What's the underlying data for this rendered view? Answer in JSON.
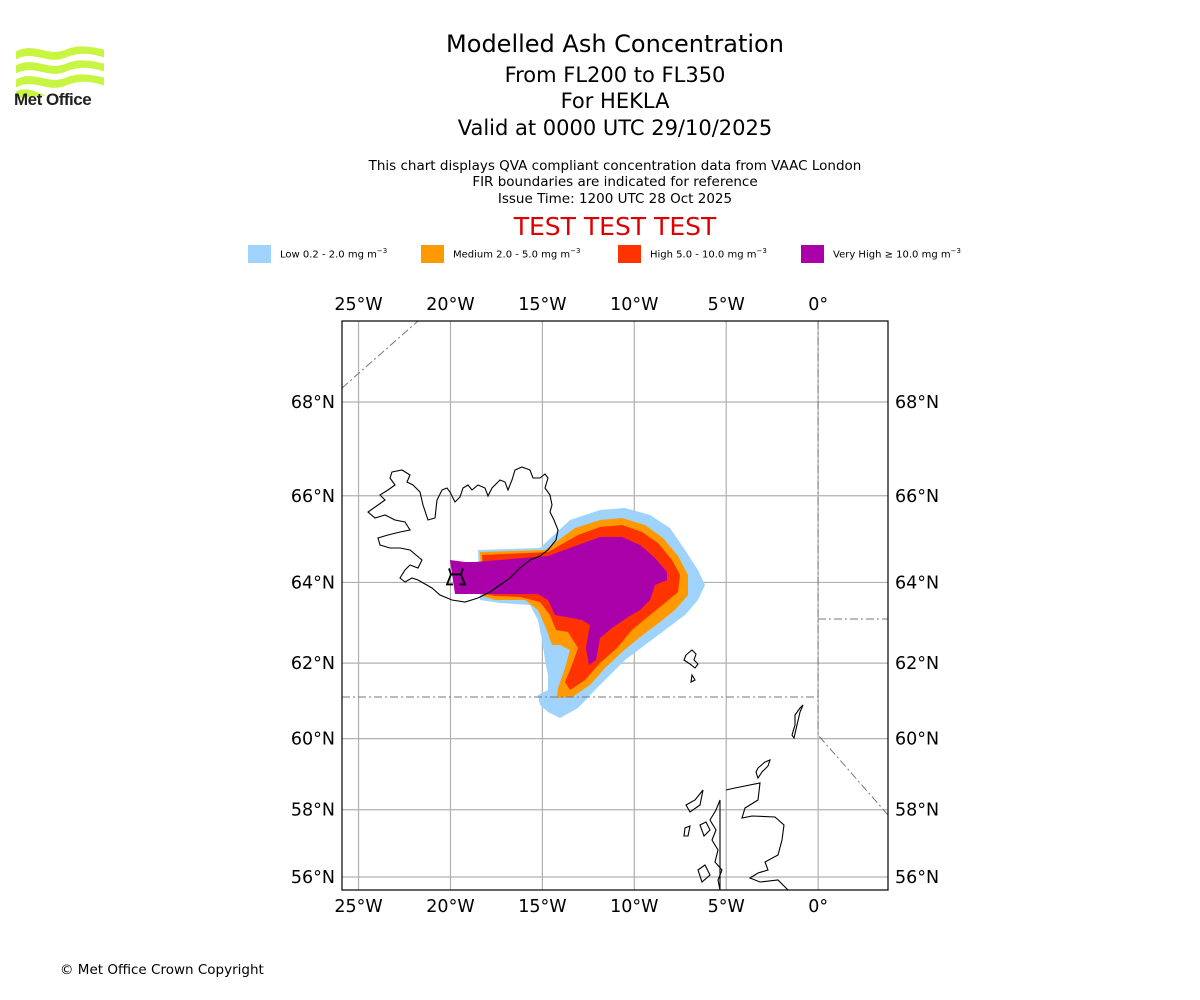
{
  "logo": {
    "text": "Met Office",
    "icon": "met-office-wave-logo",
    "color": "#c8f542"
  },
  "header": {
    "title": "Modelled Ash Concentration",
    "levels": "From FL200 to FL350",
    "volcano": "For HEKLA",
    "valid": "Valid at 0000 UTC 29/10/2025",
    "description": "This chart displays QVA compliant concentration data from VAAC London",
    "fir_note": "FIR boundaries are indicated for reference",
    "issue_time": "Issue Time: 1200 UTC 28 Oct 2025",
    "test_banner": "TEST TEST TEST"
  },
  "legend": [
    {
      "label": "Low 0.2 - 2.0 mg m",
      "unit_exp": "−3",
      "color": "#9fd3fb"
    },
    {
      "label": "Medium 2.0 - 5.0 mg m",
      "unit_exp": "−3",
      "color": "#ff9900"
    },
    {
      "label": "High 5.0 - 10.0 mg m",
      "unit_exp": "−3",
      "color": "#ff3300"
    },
    {
      "label": "Very High ≥ 10.0 mg m",
      "unit_exp": "−3",
      "color": "#aa00aa"
    }
  ],
  "map": {
    "lon_ticks": [
      {
        "value": -25,
        "label": "25°W"
      },
      {
        "value": -20,
        "label": "20°W"
      },
      {
        "value": -15,
        "label": "15°W"
      },
      {
        "value": -10,
        "label": "10°W"
      },
      {
        "value": -5,
        "label": "5°W"
      },
      {
        "value": 0,
        "label": "0°"
      }
    ],
    "lat_ticks": [
      {
        "value": 68,
        "label": "68°N"
      },
      {
        "value": 66,
        "label": "66°N"
      },
      {
        "value": 64,
        "label": "64°N"
      },
      {
        "value": 62,
        "label": "62°N"
      },
      {
        "value": 60,
        "label": "60°N"
      },
      {
        "value": 58,
        "label": "58°N"
      },
      {
        "value": 56,
        "label": "56°N"
      }
    ],
    "extent": {
      "lon_min": -25.9,
      "lon_max": 3.8,
      "lat_min": 55.6,
      "lat_max": 69.6
    },
    "volcano": {
      "name": "HEKLA",
      "lon": -19.7,
      "lat": 64.0,
      "icon": "volcano-marker-icon"
    }
  },
  "footer": {
    "copyright": "© Met Office Crown Copyright"
  }
}
